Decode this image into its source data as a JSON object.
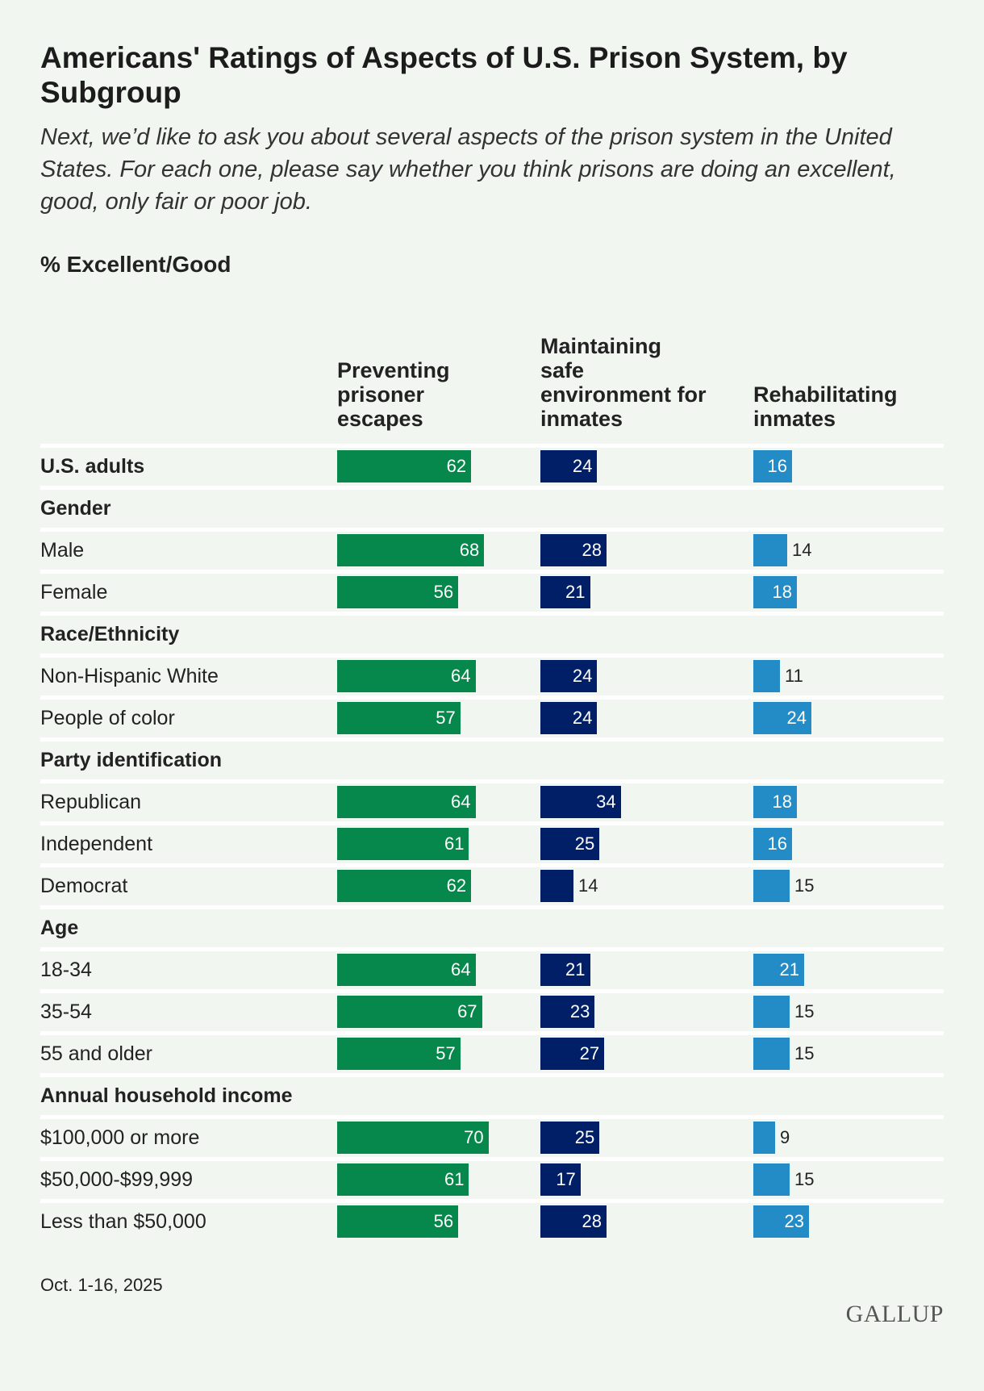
{
  "chart_data": {
    "type": "bar",
    "title": "Americans' Ratings of Aspects of U.S. Prison System, by Subgroup",
    "subtitle": "Next, we’d like to ask you about several aspects of the prison system in the United States. For each one, please say whether you think prisons are doing an excellent, good, only fair or poor job.",
    "measure": "% Excellent/Good",
    "series": [
      {
        "name": "Preventing prisoner escapes",
        "color": "#06874b"
      },
      {
        "name": "Maintaining safe environment for inmates",
        "color": "#011f66"
      },
      {
        "name": "Rehabilitating inmates",
        "color": "#238bc5"
      }
    ],
    "rows": [
      {
        "label": "U.S. adults",
        "type": "group",
        "values": [
          62,
          24,
          16
        ]
      },
      {
        "label": "Gender",
        "type": "group"
      },
      {
        "label": "Male",
        "values": [
          68,
          28,
          14
        ]
      },
      {
        "label": "Female",
        "values": [
          56,
          21,
          18
        ]
      },
      {
        "label": "Race/Ethnicity",
        "type": "group"
      },
      {
        "label": "Non-Hispanic White",
        "values": [
          64,
          24,
          11
        ]
      },
      {
        "label": "People of color",
        "values": [
          57,
          24,
          24
        ]
      },
      {
        "label": "Party identification",
        "type": "group"
      },
      {
        "label": "Republican",
        "values": [
          64,
          34,
          18
        ]
      },
      {
        "label": "Independent",
        "values": [
          61,
          25,
          16
        ]
      },
      {
        "label": "Democrat",
        "values": [
          62,
          14,
          15
        ]
      },
      {
        "label": "Age",
        "type": "group"
      },
      {
        "label": "18-34",
        "values": [
          64,
          21,
          21
        ]
      },
      {
        "label": "35-54",
        "values": [
          67,
          23,
          15
        ]
      },
      {
        "label": "55 and older",
        "values": [
          57,
          27,
          15
        ]
      },
      {
        "label": "Annual household income",
        "type": "group"
      },
      {
        "label": "$100,000 or more",
        "values": [
          70,
          25,
          9
        ]
      },
      {
        "label": "$50,000-$99,999",
        "values": [
          61,
          17,
          15
        ]
      },
      {
        "label": "Less than $50,000",
        "values": [
          56,
          28,
          23
        ]
      }
    ],
    "note": "Oct. 1-16, 2025",
    "source": "GALLUP"
  }
}
